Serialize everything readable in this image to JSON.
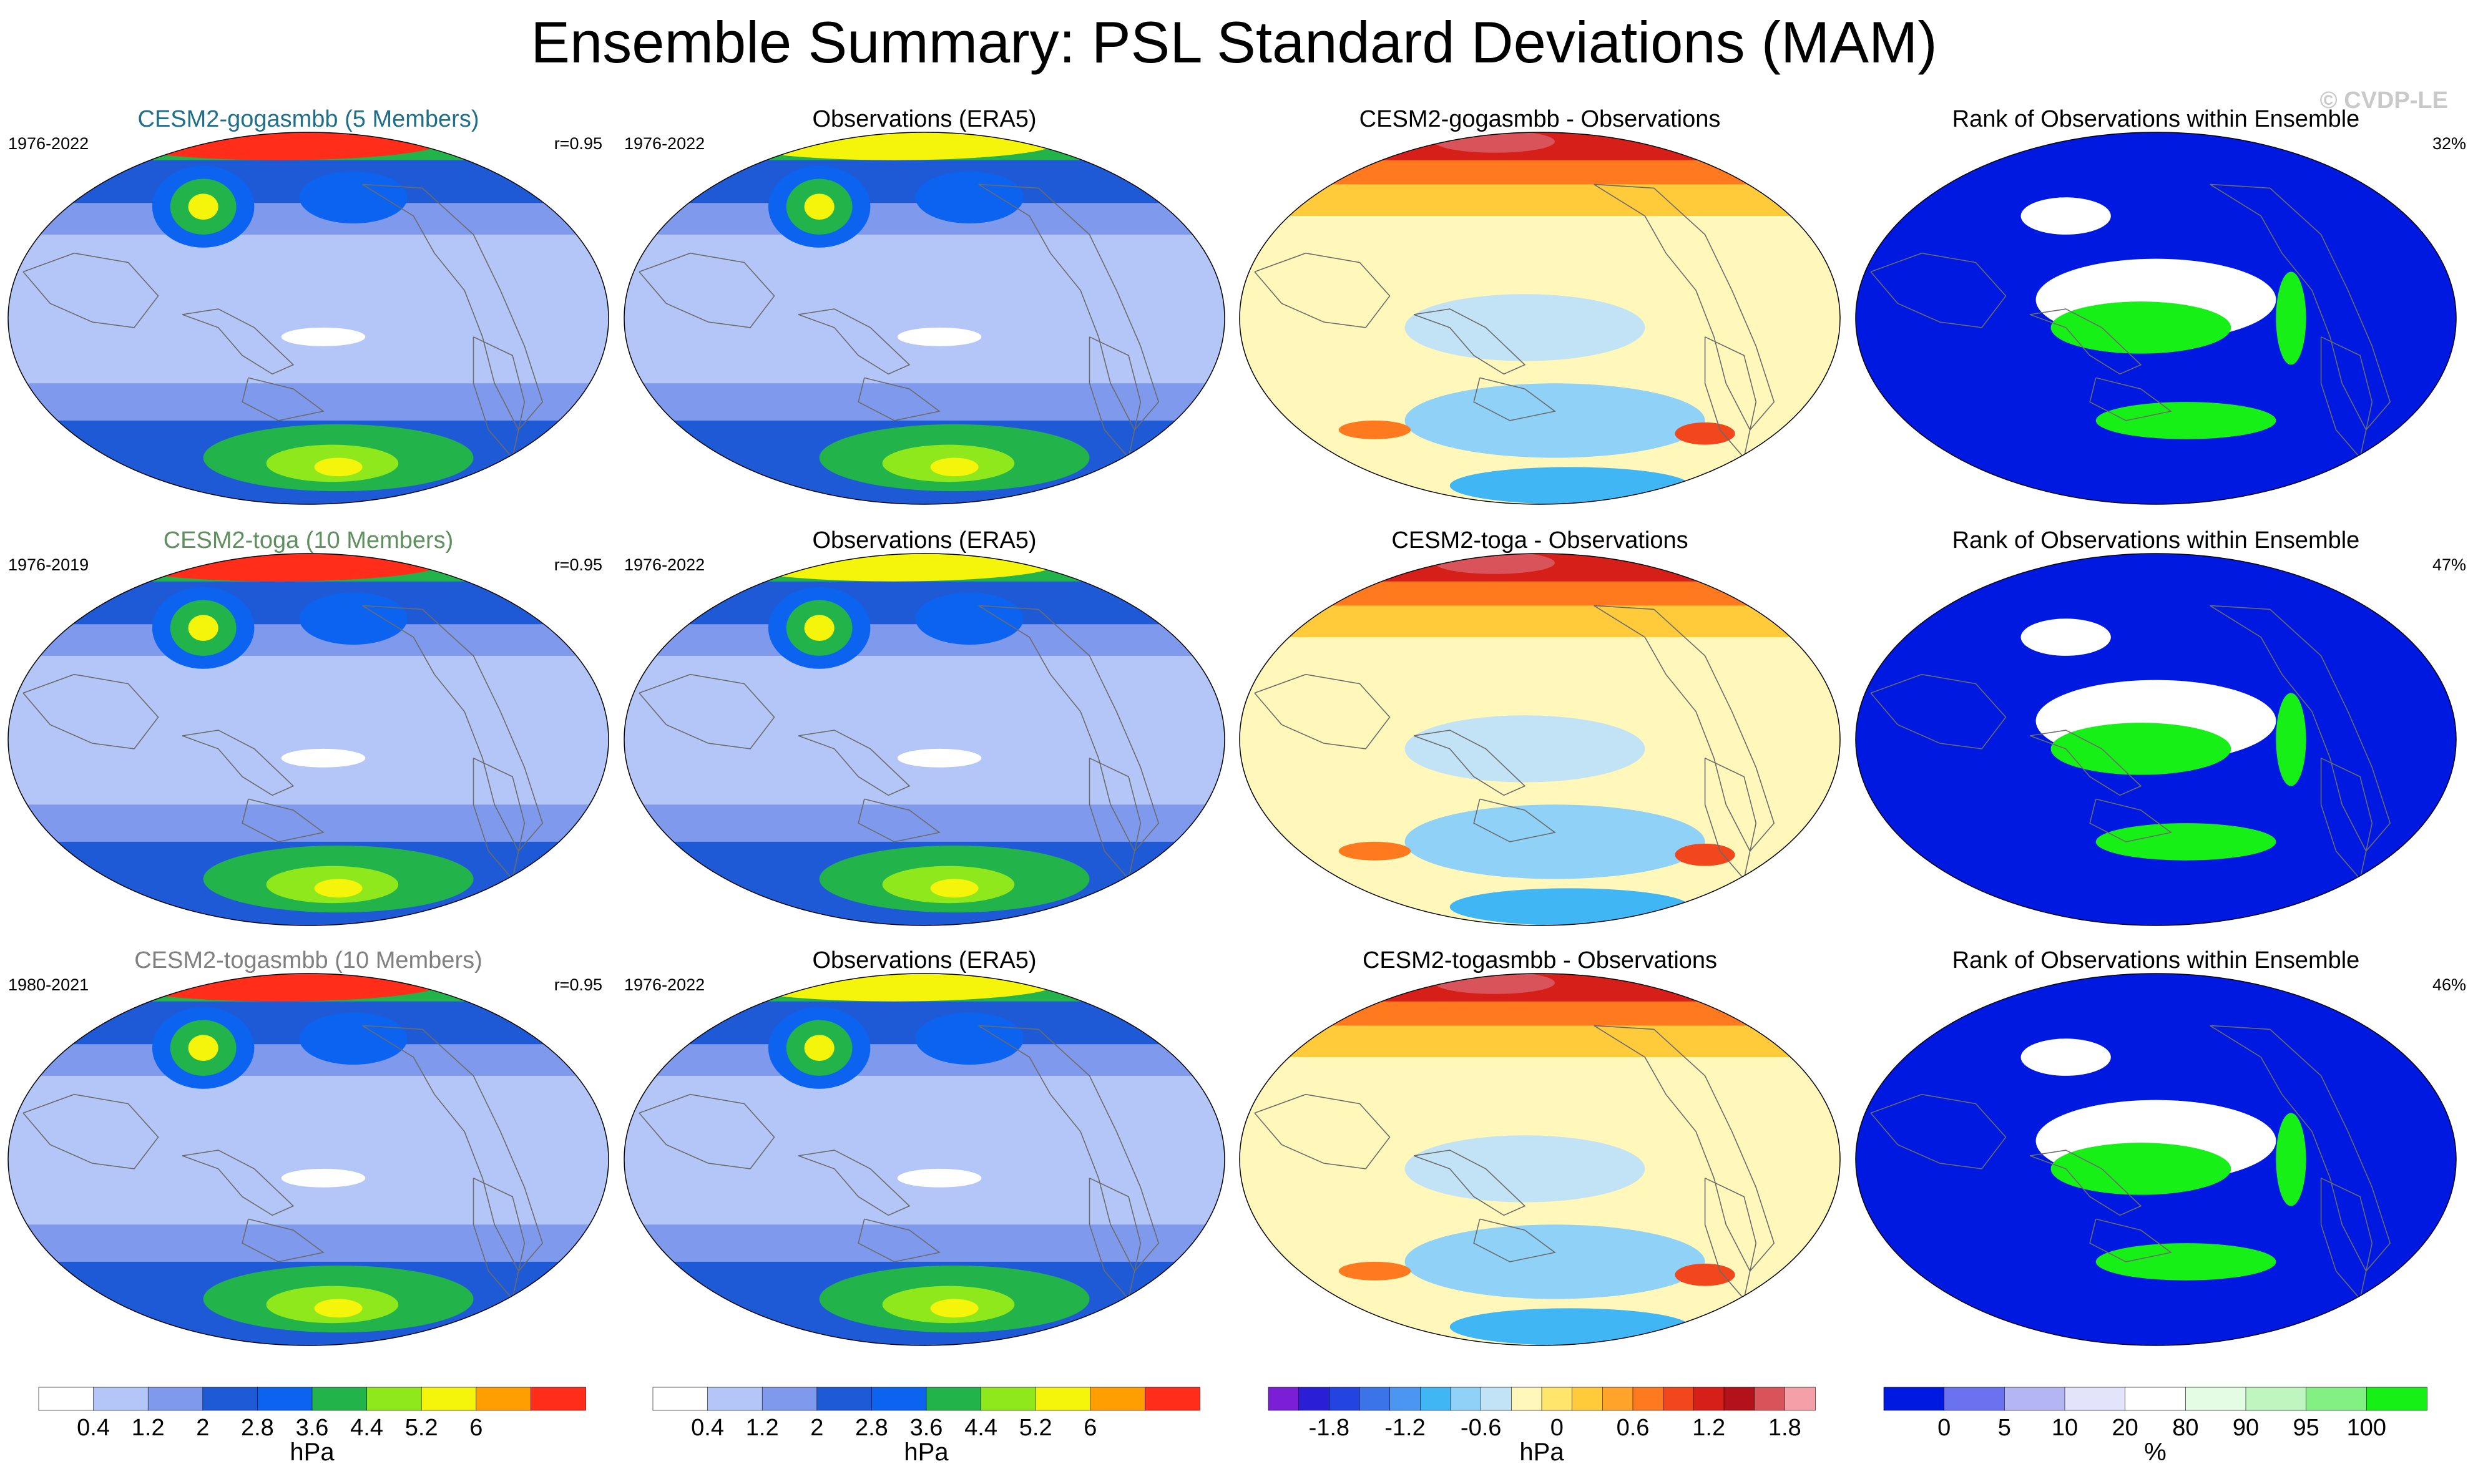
{
  "title": "Ensemble Summary: PSL Standard Deviations (MAM)",
  "watermark": "© CVDP-LE",
  "chart_data": {
    "type": "heatmap",
    "layout": "3x4 panel grid of global maps",
    "rows": [
      {
        "model": {
          "title": "CESM2-gogasmbb (5 Members)",
          "title_color": "#1f6f8b",
          "period": "1976-2022",
          "corr": "r=0.95"
        },
        "obs": {
          "title": "Observations (ERA5)",
          "period": "1976-2022"
        },
        "diff": {
          "title": "CESM2-gogasmbb - Observations"
        },
        "rank": {
          "title": "Rank of Observations within Ensemble",
          "pct": "32%"
        }
      },
      {
        "model": {
          "title": "CESM2-toga (10 Members)",
          "title_color": "#5f8f5f",
          "period": "1976-2019",
          "corr": "r=0.95"
        },
        "obs": {
          "title": "Observations (ERA5)",
          "period": "1976-2022"
        },
        "diff": {
          "title": "CESM2-toga - Observations"
        },
        "rank": {
          "title": "Rank of Observations within Ensemble",
          "pct": "47%"
        }
      },
      {
        "model": {
          "title": "CESM2-togasmbb (10 Members)",
          "title_color": "#808080",
          "period": "1980-2021",
          "corr": "r=0.95"
        },
        "obs": {
          "title": "Observations (ERA5)",
          "period": "1976-2022"
        },
        "diff": {
          "title": "CESM2-togasmbb - Observations"
        },
        "rank": {
          "title": "Rank of Observations within Ensemble",
          "pct": "46%"
        }
      }
    ],
    "colorbars": [
      {
        "name": "model-std",
        "unit": "hPa",
        "colors": [
          "#ffffff",
          "#b3c6f7",
          "#7f99ec",
          "#1f5ad6",
          "#0b63f0",
          "#22b44a",
          "#8fe81c",
          "#f5f50b",
          "#ff9e00",
          "#ff2d1a"
        ],
        "ticks": [
          "0.4",
          "1.2",
          "2",
          "2.8",
          "3.6",
          "4.4",
          "5.2",
          "6"
        ]
      },
      {
        "name": "obs-std",
        "unit": "hPa",
        "colors": [
          "#ffffff",
          "#b3c6f7",
          "#7f99ec",
          "#1f5ad6",
          "#0b63f0",
          "#22b44a",
          "#8fe81c",
          "#f5f50b",
          "#ff9e00",
          "#ff2d1a"
        ],
        "ticks": [
          "0.4",
          "1.2",
          "2",
          "2.8",
          "3.6",
          "4.4",
          "5.2",
          "6"
        ]
      },
      {
        "name": "difference",
        "unit": "hPa",
        "colors": [
          "#7a1fd6",
          "#2a1fd6",
          "#2344e0",
          "#3a74e8",
          "#4a96f0",
          "#41b6f5",
          "#8fd1f7",
          "#c2e3f5",
          "#fff8ba",
          "#ffe56b",
          "#ffcb3a",
          "#ffa32a",
          "#ff7a1e",
          "#f2471c",
          "#d71f1a",
          "#b3121a",
          "#d9545a",
          "#f5a0a8"
        ],
        "ticks": [
          "-1.8",
          "-1.2",
          "-0.6",
          "0",
          "0.6",
          "1.2",
          "1.8"
        ]
      },
      {
        "name": "rank",
        "unit": "%",
        "colors": [
          "#0019e0",
          "#6b72f0",
          "#b3b6f3",
          "#e3e3fb",
          "#ffffff",
          "#e4fbe4",
          "#bff5bf",
          "#83f083",
          "#17f017"
        ],
        "ticks": [
          "0",
          "5",
          "10",
          "20",
          "80",
          "90",
          "95",
          "100"
        ]
      }
    ]
  }
}
